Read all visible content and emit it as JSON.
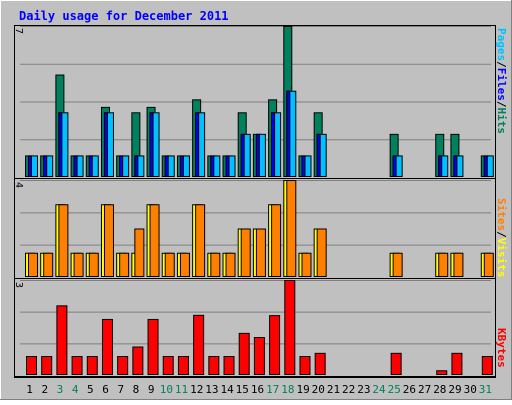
{
  "chart_data": [
    {
      "type": "bar",
      "panel": "pages-files-hits",
      "title": "Daily usage for December 2011",
      "ylim": [
        0,
        7
      ],
      "y_max_label": "7",
      "ylabel_parts": [
        "Pages",
        "Files",
        "Hits"
      ],
      "categories": [
        "1",
        "2",
        "3",
        "4",
        "5",
        "6",
        "7",
        "8",
        "9",
        "10",
        "11",
        "12",
        "13",
        "14",
        "15",
        "16",
        "17",
        "18",
        "19",
        "20",
        "21",
        "22",
        "23",
        "24",
        "25",
        "26",
        "27",
        "28",
        "29",
        "30",
        "31"
      ],
      "series": [
        {
          "name": "Hits",
          "color": "#00805c",
          "values": [
            1,
            1,
            4.75,
            1,
            1,
            3.25,
            1,
            3,
            3.25,
            1,
            1,
            3.6,
            1,
            1,
            3,
            2,
            3.6,
            7,
            1,
            3,
            0,
            0,
            0,
            0,
            2,
            0,
            0,
            2,
            2,
            0,
            1
          ]
        },
        {
          "name": "Files",
          "color": "#00c0ff",
          "values": [
            1,
            1,
            3,
            1,
            1,
            3,
            1,
            1,
            3,
            1,
            1,
            3,
            1,
            1,
            2,
            2,
            3,
            4,
            1,
            2,
            0,
            0,
            0,
            0,
            1,
            0,
            0,
            1,
            1,
            0,
            1
          ]
        },
        {
          "name": "Pages",
          "color": "#0000ff",
          "values": [
            1,
            1,
            3,
            1,
            1,
            3,
            1,
            1,
            3,
            1,
            1,
            3,
            1,
            1,
            2,
            2,
            3,
            4,
            1,
            2,
            0,
            0,
            0,
            0,
            1,
            0,
            0,
            1,
            1,
            0,
            1
          ]
        }
      ],
      "grid": true
    },
    {
      "type": "bar",
      "panel": "sites-visits",
      "ylim": [
        0,
        4
      ],
      "y_max_label": "4",
      "ylabel_parts": [
        "Sites",
        "Visits"
      ],
      "series": [
        {
          "name": "Visits",
          "color": "#ffff00",
          "values": [
            1,
            1,
            3,
            1,
            1,
            3,
            1,
            1,
            3,
            1,
            1,
            3,
            1,
            1,
            2,
            2,
            3,
            4,
            1,
            2,
            0,
            0,
            0,
            0,
            1,
            0,
            0,
            1,
            1,
            0,
            1
          ]
        },
        {
          "name": "Sites",
          "color": "#ff8000",
          "values": [
            1,
            1,
            3,
            1,
            1,
            3,
            1,
            2,
            3,
            1,
            1,
            3,
            1,
            1,
            2,
            2,
            3,
            4,
            1,
            2,
            0,
            0,
            0,
            0,
            1,
            0,
            0,
            1,
            1,
            0,
            1
          ]
        }
      ],
      "grid": true
    },
    {
      "type": "bar",
      "panel": "kbytes",
      "ylim": [
        0,
        3
      ],
      "y_max_label": "3",
      "ylabel_parts": [
        "KBytes"
      ],
      "series": [
        {
          "name": "KBytes",
          "color": "#ff0000",
          "values": [
            0.6,
            0.6,
            2.2,
            0.6,
            0.6,
            1.77,
            0.6,
            0.9,
            1.77,
            0.6,
            0.6,
            1.9,
            0.6,
            0.6,
            1.33,
            1.2,
            1.89,
            3,
            0.6,
            0.7,
            0,
            0,
            0,
            0,
            0.7,
            0,
            0,
            0.15,
            0.7,
            0,
            0.6
          ]
        }
      ],
      "grid": true
    }
  ],
  "x_axis": {
    "labels": [
      "1",
      "2",
      "3",
      "4",
      "5",
      "6",
      "7",
      "8",
      "9",
      "10",
      "11",
      "12",
      "13",
      "14",
      "15",
      "16",
      "17",
      "18",
      "19",
      "20",
      "21",
      "22",
      "23",
      "24",
      "25",
      "26",
      "27",
      "28",
      "29",
      "30",
      "31"
    ],
    "weekend_days": [
      3,
      4,
      10,
      11,
      17,
      18,
      24,
      25,
      31
    ],
    "weekday_color": "#000000",
    "weekend_color": "#00805c"
  },
  "colors": {
    "background": "#c0c0c0",
    "title": "#0000ff",
    "grid": "#808080",
    "pages_label": "#00c0ff",
    "files_label": "#0000ff",
    "hits_label": "#00805c",
    "sites_label": "#ff8000",
    "visits_label": "#ffff00",
    "kbytes_label": "#ff0000",
    "separator": "#000000"
  }
}
